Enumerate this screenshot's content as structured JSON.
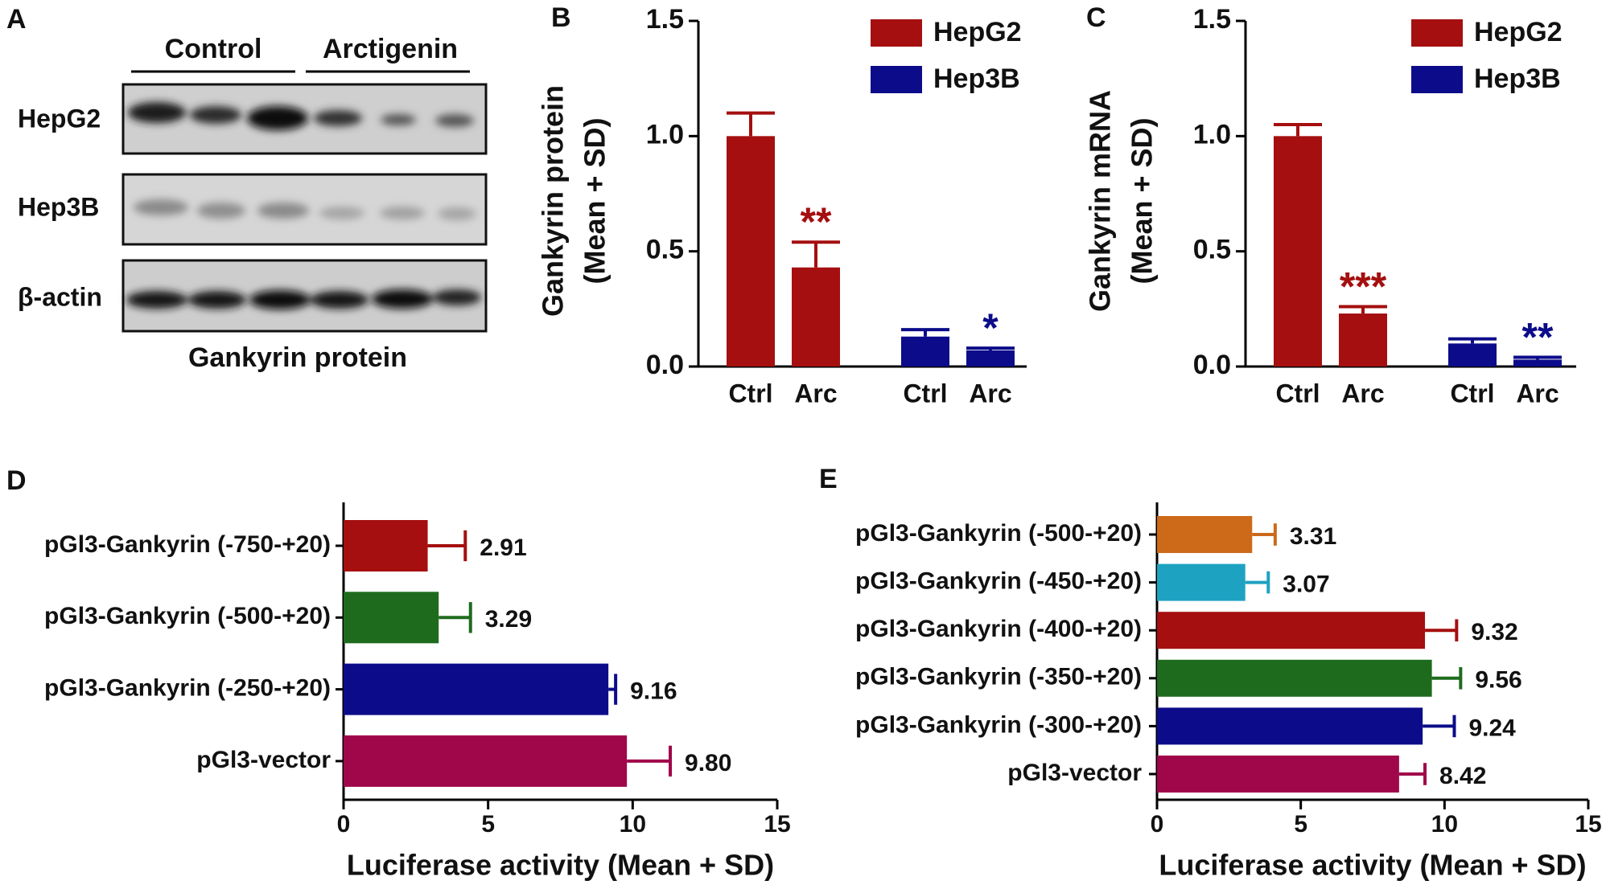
{
  "blot": {
    "panel_label": "A",
    "groups": [
      "Control",
      "Arctigenin"
    ],
    "rows": [
      "HepG2",
      "Hep3B",
      "β-actin"
    ],
    "caption": "Gankyrin protein"
  },
  "chart_data": [
    {
      "type": "bar",
      "panel_label": "B",
      "y_label": [
        "Gankyrin protein",
        "(Mean + SD)"
      ],
      "categories": [
        "Ctrl",
        "Arc"
      ],
      "series": [
        {
          "name": "HepG2",
          "color": "#a50f0f",
          "values": [
            1.0,
            0.43
          ],
          "errors": [
            0.1,
            0.11
          ],
          "annotations": [
            null,
            "**"
          ]
        },
        {
          "name": "Hep3B",
          "color": "#0c0c8a",
          "values": [
            0.13,
            0.07
          ],
          "errors": [
            0.03,
            0.01
          ],
          "annotations": [
            null,
            "*"
          ]
        }
      ],
      "ylim": [
        0,
        1.5
      ],
      "yticks": [
        {
          "value": 0,
          "label": "0.0"
        },
        {
          "value": 0.5,
          "label": "0.5"
        },
        {
          "value": 1,
          "label": "1.0"
        },
        {
          "value": 1.5,
          "label": "1.5"
        }
      ],
      "legend": "upper right"
    },
    {
      "type": "bar",
      "panel_label": "C",
      "y_label": [
        "Gankyrin mRNA",
        "(Mean + SD)"
      ],
      "categories": [
        "Ctrl",
        "Arc"
      ],
      "series": [
        {
          "name": "HepG2",
          "color": "#a50f0f",
          "values": [
            1.0,
            0.23
          ],
          "errors": [
            0.05,
            0.03
          ],
          "annotations": [
            null,
            "***"
          ]
        },
        {
          "name": "Hep3B",
          "color": "#0c0c8a",
          "values": [
            0.1,
            0.03
          ],
          "errors": [
            0.02,
            0.01
          ],
          "annotations": [
            null,
            "**"
          ]
        }
      ],
      "ylim": [
        0,
        1.5
      ],
      "yticks": [
        {
          "value": 0,
          "label": "0.0"
        },
        {
          "value": 0.5,
          "label": "0.5"
        },
        {
          "value": 1,
          "label": "1.0"
        },
        {
          "value": 1.5,
          "label": "1.5"
        }
      ],
      "legend": "upper right"
    },
    {
      "type": "hbar",
      "panel_label": "D",
      "x_label": "Luciferase activity (Mean + SD)",
      "categories": [
        "pGl3-Gankyrin (-750-+20)",
        "pGl3-Gankyrin (-500-+20)",
        "pGl3-Gankyrin (-250-+20)",
        "pGl3-vector"
      ],
      "values": [
        2.91,
        3.29,
        9.16,
        9.8
      ],
      "value_labels": [
        "2.91",
        "3.29",
        "9.16",
        "9.80"
      ],
      "errors": [
        1.3,
        1.1,
        0.25,
        1.5
      ],
      "colors": [
        "#a50f0f",
        "#1e6b1e",
        "#0c0c8a",
        "#a0064a"
      ],
      "xlim": [
        0,
        15
      ],
      "xticks": [
        0,
        5,
        10,
        15
      ]
    },
    {
      "type": "hbar",
      "panel_label": "E",
      "x_label": "Luciferase activity (Mean + SD)",
      "categories": [
        "pGl3-Gankyrin (-500-+20)",
        "pGl3-Gankyrin (-450-+20)",
        "pGl3-Gankyrin (-400-+20)",
        "pGl3-Gankyrin (-350-+20)",
        "pGl3-Gankyrin (-300-+20)",
        "pGl3-vector"
      ],
      "values": [
        3.31,
        3.07,
        9.32,
        9.56,
        9.24,
        8.42
      ],
      "value_labels": [
        "3.31",
        "3.07",
        "9.32",
        "9.56",
        "9.24",
        "8.42"
      ],
      "errors": [
        0.8,
        0.8,
        1.1,
        1.0,
        1.1,
        0.9
      ],
      "colors": [
        "#cc6a1a",
        "#1ea2c2",
        "#a50f0f",
        "#1e6b1e",
        "#0c0c8a",
        "#a0064a"
      ],
      "xlim": [
        0,
        15
      ],
      "xticks": [
        0,
        5,
        10,
        15
      ]
    }
  ]
}
